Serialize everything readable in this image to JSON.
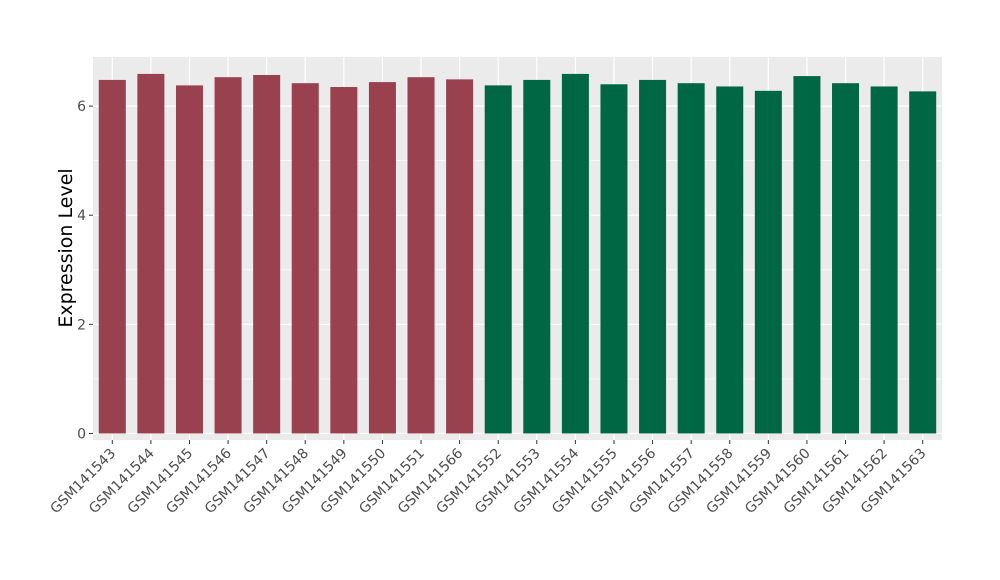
{
  "chart_data": {
    "type": "bar",
    "title": "",
    "xlabel": "",
    "ylabel": "Expression Level",
    "ylim": [
      -0.12,
      6.9
    ],
    "yticks": [
      0,
      2,
      4,
      6
    ],
    "grid": true,
    "legend": "none",
    "categories": [
      "GSM141543",
      "GSM141544",
      "GSM141545",
      "GSM141546",
      "GSM141547",
      "GSM141548",
      "GSM141549",
      "GSM141550",
      "GSM141551",
      "GSM141566",
      "GSM141552",
      "GSM141553",
      "GSM141554",
      "GSM141555",
      "GSM141556",
      "GSM141557",
      "GSM141558",
      "GSM141559",
      "GSM141560",
      "GSM141561",
      "GSM141562",
      "GSM141563"
    ],
    "values": [
      6.48,
      6.59,
      6.38,
      6.53,
      6.57,
      6.42,
      6.35,
      6.44,
      6.53,
      6.49,
      6.38,
      6.48,
      6.59,
      6.4,
      6.48,
      6.42,
      6.36,
      6.28,
      6.55,
      6.42,
      6.36,
      6.27
    ],
    "groups": [
      1,
      1,
      1,
      1,
      1,
      1,
      1,
      1,
      1,
      1,
      2,
      2,
      2,
      2,
      2,
      2,
      2,
      2,
      2,
      2,
      2,
      2
    ],
    "group_colors": {
      "1": "#99414f",
      "2": "#006744"
    },
    "panel_background": "#ebebeb",
    "grid_color": "#ffffff"
  }
}
